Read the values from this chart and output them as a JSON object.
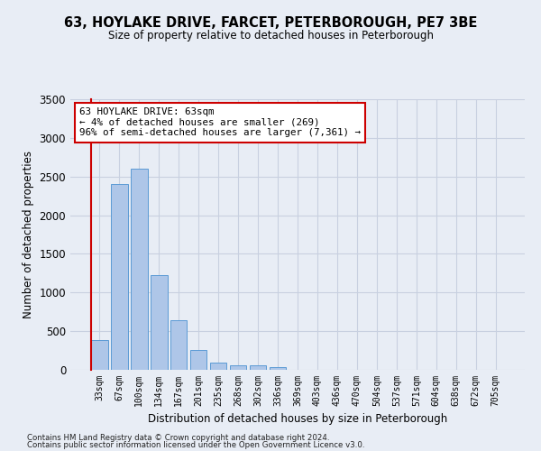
{
  "title1": "63, HOYLAKE DRIVE, FARCET, PETERBOROUGH, PE7 3BE",
  "title2": "Size of property relative to detached houses in Peterborough",
  "xlabel": "Distribution of detached houses by size in Peterborough",
  "ylabel": "Number of detached properties",
  "footnote1": "Contains HM Land Registry data © Crown copyright and database right 2024.",
  "footnote2": "Contains public sector information licensed under the Open Government Licence v3.0.",
  "categories": [
    "33sqm",
    "67sqm",
    "100sqm",
    "134sqm",
    "167sqm",
    "201sqm",
    "235sqm",
    "268sqm",
    "302sqm",
    "336sqm",
    "369sqm",
    "403sqm",
    "436sqm",
    "470sqm",
    "504sqm",
    "537sqm",
    "571sqm",
    "604sqm",
    "638sqm",
    "672sqm",
    "705sqm"
  ],
  "values": [
    390,
    2400,
    2600,
    1230,
    640,
    260,
    90,
    60,
    60,
    40,
    0,
    0,
    0,
    0,
    0,
    0,
    0,
    0,
    0,
    0,
    0
  ],
  "bar_color": "#aec6e8",
  "bar_edge_color": "#5b9bd5",
  "grid_color": "#c8d0e0",
  "background_color": "#e8edf5",
  "annotation_box_text": "63 HOYLAKE DRIVE: 63sqm\n← 4% of detached houses are smaller (269)\n96% of semi-detached houses are larger (7,361) →",
  "annotation_box_color": "#cc0000",
  "ylim": [
    0,
    3500
  ],
  "yticks": [
    0,
    500,
    1000,
    1500,
    2000,
    2500,
    3000,
    3500
  ]
}
